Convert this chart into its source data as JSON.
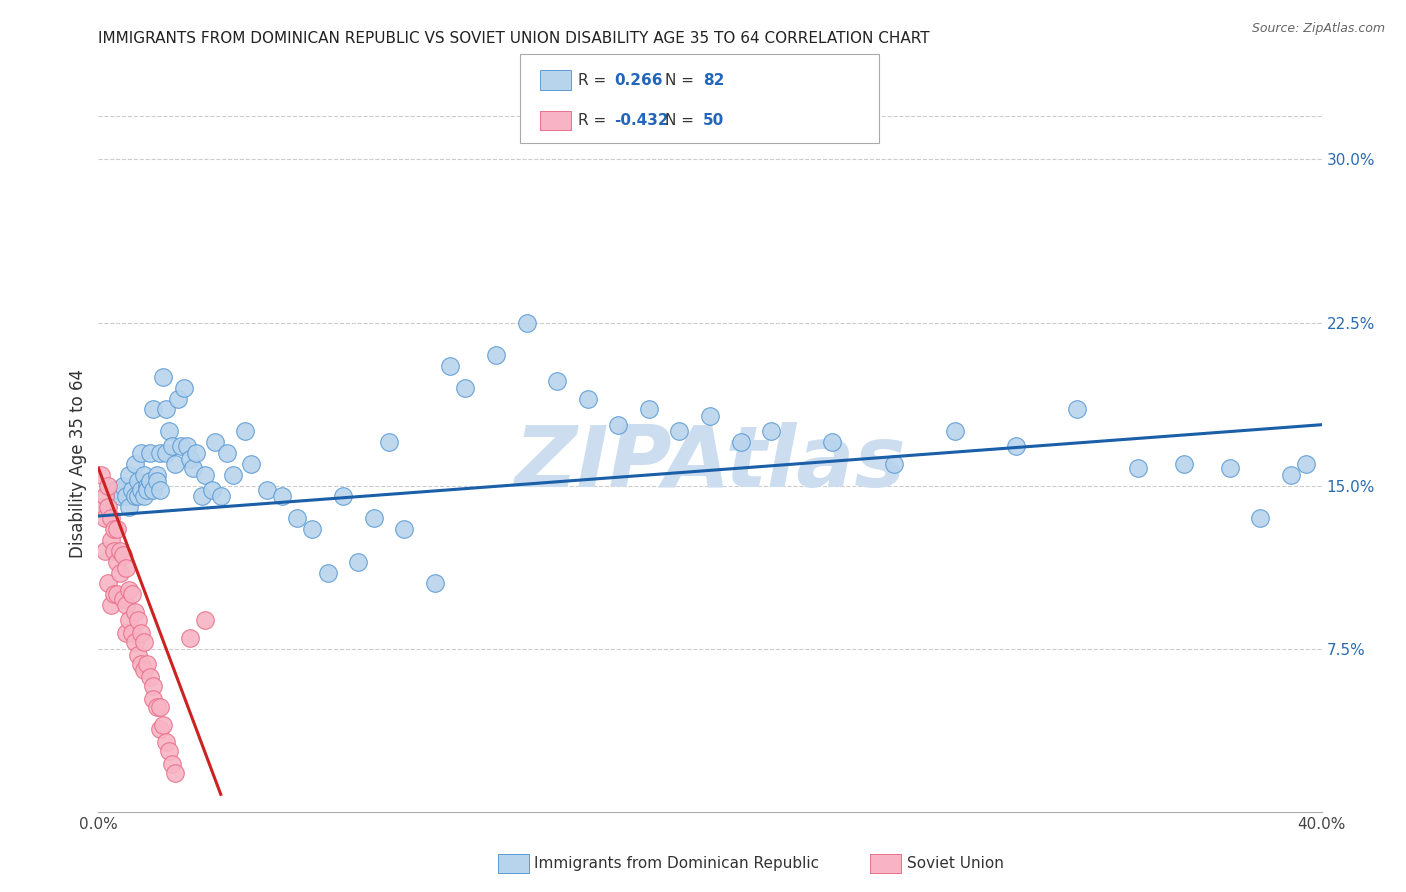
{
  "title": "IMMIGRANTS FROM DOMINICAN REPUBLIC VS SOVIET UNION DISABILITY AGE 35 TO 64 CORRELATION CHART",
  "source": "Source: ZipAtlas.com",
  "ylabel": "Disability Age 35 to 64",
  "xmin": 0.0,
  "xmax": 0.4,
  "ymin": 0.0,
  "ymax": 0.32,
  "watermark": "ZIPAtlas",
  "blue_R": "0.266",
  "blue_N": "82",
  "pink_R": "-0.432",
  "pink_N": "50",
  "legend_label_blue": "Immigrants from Dominican Republic",
  "legend_label_pink": "Soviet Union",
  "blue_scatter_x": [
    0.005,
    0.006,
    0.007,
    0.008,
    0.009,
    0.01,
    0.01,
    0.011,
    0.012,
    0.012,
    0.013,
    0.013,
    0.014,
    0.014,
    0.015,
    0.015,
    0.016,
    0.016,
    0.017,
    0.017,
    0.018,
    0.018,
    0.019,
    0.019,
    0.02,
    0.02,
    0.021,
    0.022,
    0.022,
    0.023,
    0.024,
    0.025,
    0.026,
    0.027,
    0.028,
    0.029,
    0.03,
    0.031,
    0.032,
    0.034,
    0.035,
    0.037,
    0.038,
    0.04,
    0.042,
    0.044,
    0.048,
    0.05,
    0.055,
    0.06,
    0.065,
    0.07,
    0.075,
    0.08,
    0.085,
    0.09,
    0.095,
    0.1,
    0.11,
    0.115,
    0.12,
    0.13,
    0.14,
    0.15,
    0.16,
    0.17,
    0.18,
    0.19,
    0.2,
    0.21,
    0.22,
    0.24,
    0.26,
    0.28,
    0.3,
    0.32,
    0.34,
    0.355,
    0.37,
    0.38,
    0.39,
    0.395
  ],
  "blue_scatter_y": [
    0.148,
    0.148,
    0.145,
    0.15,
    0.145,
    0.14,
    0.155,
    0.148,
    0.16,
    0.145,
    0.152,
    0.145,
    0.165,
    0.148,
    0.155,
    0.145,
    0.15,
    0.148,
    0.165,
    0.152,
    0.185,
    0.148,
    0.155,
    0.152,
    0.148,
    0.165,
    0.2,
    0.185,
    0.165,
    0.175,
    0.168,
    0.16,
    0.19,
    0.168,
    0.195,
    0.168,
    0.162,
    0.158,
    0.165,
    0.145,
    0.155,
    0.148,
    0.17,
    0.145,
    0.165,
    0.155,
    0.175,
    0.16,
    0.148,
    0.145,
    0.135,
    0.13,
    0.11,
    0.145,
    0.115,
    0.135,
    0.17,
    0.13,
    0.105,
    0.205,
    0.195,
    0.21,
    0.225,
    0.198,
    0.19,
    0.178,
    0.185,
    0.175,
    0.182,
    0.17,
    0.175,
    0.17,
    0.16,
    0.175,
    0.168,
    0.185,
    0.158,
    0.16,
    0.158,
    0.135,
    0.155,
    0.16
  ],
  "pink_scatter_x": [
    0.001,
    0.001,
    0.002,
    0.002,
    0.002,
    0.003,
    0.003,
    0.003,
    0.004,
    0.004,
    0.004,
    0.005,
    0.005,
    0.005,
    0.006,
    0.006,
    0.006,
    0.007,
    0.007,
    0.008,
    0.008,
    0.009,
    0.009,
    0.009,
    0.01,
    0.01,
    0.011,
    0.011,
    0.012,
    0.012,
    0.013,
    0.013,
    0.014,
    0.014,
    0.015,
    0.015,
    0.016,
    0.017,
    0.018,
    0.018,
    0.019,
    0.02,
    0.02,
    0.021,
    0.022,
    0.023,
    0.024,
    0.025,
    0.03,
    0.035
  ],
  "pink_scatter_y": [
    0.155,
    0.14,
    0.135,
    0.145,
    0.12,
    0.14,
    0.15,
    0.105,
    0.135,
    0.125,
    0.095,
    0.13,
    0.12,
    0.1,
    0.13,
    0.115,
    0.1,
    0.12,
    0.11,
    0.118,
    0.098,
    0.112,
    0.095,
    0.082,
    0.102,
    0.088,
    0.1,
    0.082,
    0.092,
    0.078,
    0.088,
    0.072,
    0.082,
    0.068,
    0.078,
    0.065,
    0.068,
    0.062,
    0.058,
    0.052,
    0.048,
    0.048,
    0.038,
    0.04,
    0.032,
    0.028,
    0.022,
    0.018,
    0.08,
    0.088
  ],
  "blue_line_x": [
    0.0,
    0.4
  ],
  "blue_line_y": [
    0.136,
    0.178
  ],
  "pink_line_x": [
    0.0,
    0.04
  ],
  "pink_line_y": [
    0.158,
    0.008
  ],
  "bg_color": "#ffffff",
  "scatter_blue_facecolor": "#b8d4ed",
  "scatter_blue_edgecolor": "#5b9bd5",
  "scatter_pink_facecolor": "#f8b4c4",
  "scatter_pink_edgecolor": "#e8708a",
  "line_blue_color": "#1a5fa8",
  "line_pink_color": "#cc2222",
  "grid_color": "#cccccc",
  "grid_linestyle": "--",
  "watermark_color": "#ccddef",
  "right_yticks": [
    0.075,
    0.15,
    0.225,
    0.3
  ],
  "right_ylabels": [
    "7.5%",
    "15.0%",
    "22.5%",
    "30.0%"
  ],
  "xtick_vals": [
    0.0,
    0.05,
    0.1,
    0.15,
    0.2,
    0.25,
    0.3,
    0.35,
    0.4
  ],
  "xtick_labels": [
    "0.0%",
    "",
    "",
    "",
    "",
    "",
    "",
    "",
    "40.0%"
  ]
}
